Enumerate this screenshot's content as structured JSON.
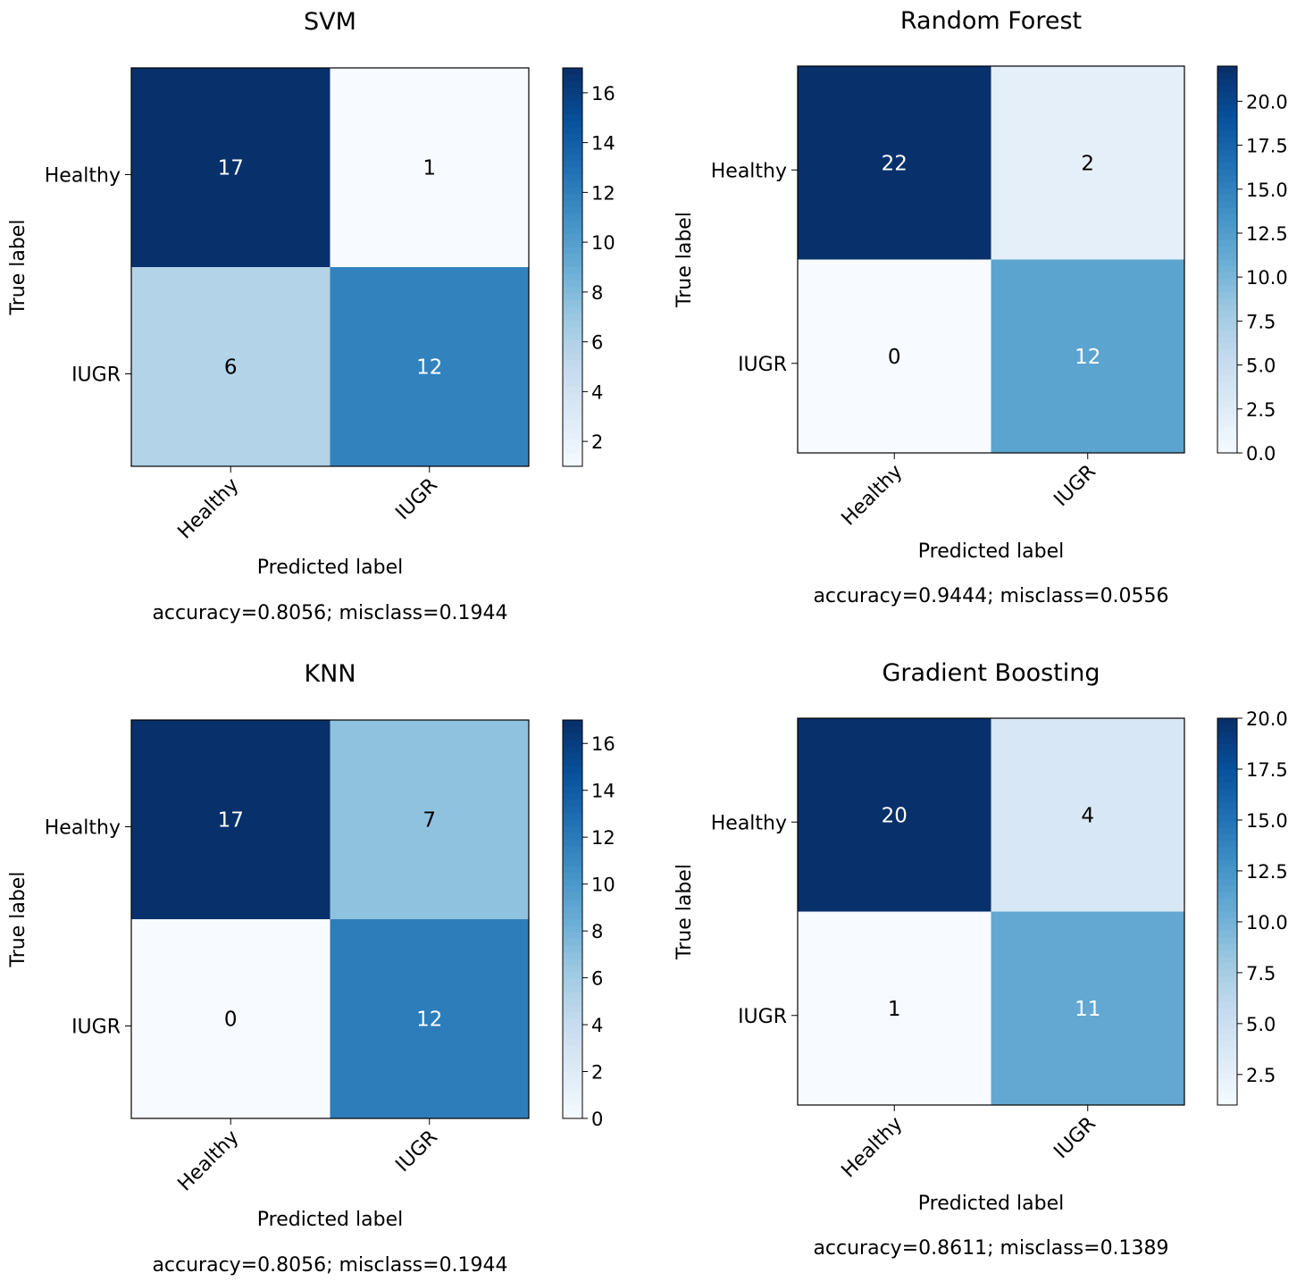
{
  "chart_data": [
    {
      "type": "heatmap",
      "title": "SVM",
      "xlabel": "Predicted label",
      "ylabel": "True label",
      "x_categories": [
        "Healthy",
        "IUGR"
      ],
      "y_categories": [
        "Healthy",
        "IUGR"
      ],
      "values": [
        [
          17,
          1
        ],
        [
          6,
          12
        ]
      ],
      "colorbar": {
        "min": 1,
        "max": 17,
        "ticks": [
          2,
          4,
          6,
          8,
          10,
          12,
          14,
          16
        ],
        "tick_labels": [
          "2",
          "4",
          "6",
          "8",
          "10",
          "12",
          "14",
          "16"
        ]
      },
      "footer": "accuracy=0.8056; misclass=0.1944"
    },
    {
      "type": "heatmap",
      "title": "Random Forest",
      "xlabel": "Predicted label",
      "ylabel": "True label",
      "x_categories": [
        "Healthy",
        "IUGR"
      ],
      "y_categories": [
        "Healthy",
        "IUGR"
      ],
      "values": [
        [
          22,
          2
        ],
        [
          0,
          12
        ]
      ],
      "colorbar": {
        "min": 0,
        "max": 22,
        "ticks": [
          0,
          2.5,
          5,
          7.5,
          10,
          12.5,
          15,
          17.5,
          20
        ],
        "tick_labels": [
          "0.0",
          "2.5",
          "5.0",
          "7.5",
          "10.0",
          "12.5",
          "15.0",
          "17.5",
          "20.0"
        ]
      },
      "footer": "accuracy=0.9444; misclass=0.0556"
    },
    {
      "type": "heatmap",
      "title": "KNN",
      "xlabel": "Predicted label",
      "ylabel": "True label",
      "x_categories": [
        "Healthy",
        "IUGR"
      ],
      "y_categories": [
        "Healthy",
        "IUGR"
      ],
      "values": [
        [
          17,
          7
        ],
        [
          0,
          12
        ]
      ],
      "colorbar": {
        "min": 0,
        "max": 17,
        "ticks": [
          0,
          2,
          4,
          6,
          8,
          10,
          12,
          14,
          16
        ],
        "tick_labels": [
          "0",
          "2",
          "4",
          "6",
          "8",
          "10",
          "12",
          "14",
          "16"
        ]
      },
      "footer": "accuracy=0.8056; misclass=0.1944"
    },
    {
      "type": "heatmap",
      "title": "Gradient Boosting",
      "xlabel": "Predicted label",
      "ylabel": "True label",
      "x_categories": [
        "Healthy",
        "IUGR"
      ],
      "y_categories": [
        "Healthy",
        "IUGR"
      ],
      "values": [
        [
          20,
          4
        ],
        [
          1,
          11
        ]
      ],
      "colorbar": {
        "min": 1,
        "max": 20,
        "ticks": [
          2.5,
          5,
          7.5,
          10,
          12.5,
          15,
          17.5,
          20
        ],
        "tick_labels": [
          "2.5",
          "5.0",
          "7.5",
          "10.0",
          "12.5",
          "15.0",
          "17.5",
          "20.0"
        ]
      },
      "footer": "accuracy=0.8611; misclass=0.1389"
    }
  ],
  "colormap": {
    "name": "Blues",
    "stops": [
      "#f7fbff",
      "#deebf7",
      "#c6dbef",
      "#9ecae1",
      "#6baed6",
      "#4292c6",
      "#2171b5",
      "#08519c",
      "#08306b"
    ]
  }
}
